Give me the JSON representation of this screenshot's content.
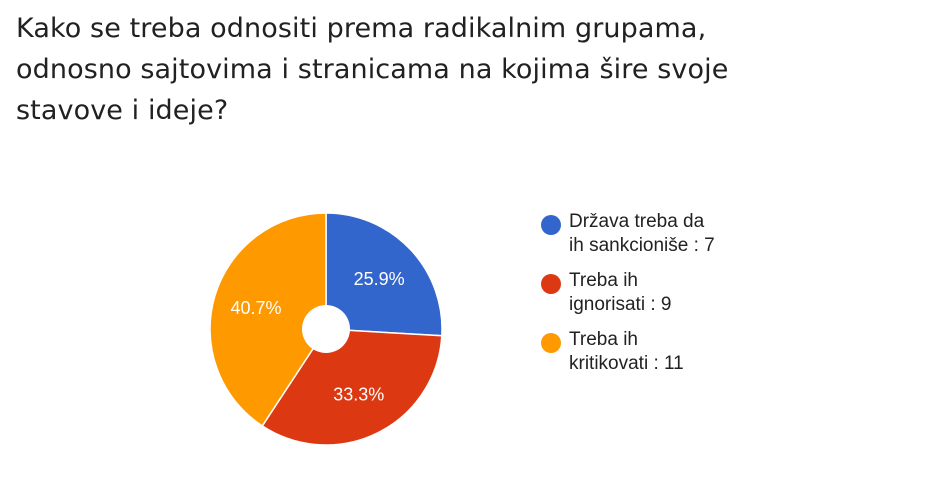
{
  "title_lines": [
    "Kako se treba odnositi prema radikalnim grupama,",
    "odnosno sajtovima i stranicama na kojima šire svoje",
    "stavove i ideje?"
  ],
  "chart_data": {
    "type": "pie",
    "donut": true,
    "legend_position": "right",
    "slices": [
      {
        "label_lines": [
          "Država treba da",
          "ih sankcioniše : 7"
        ],
        "value": 7,
        "percent_label": "25.9%",
        "color": "#3366cc"
      },
      {
        "label_lines": [
          "Treba ih",
          "ignorisati : 9"
        ],
        "value": 9,
        "percent_label": "33.3%",
        "color": "#dc3912"
      },
      {
        "label_lines": [
          "Treba ih",
          "kritikovati : 11"
        ],
        "value": 11,
        "percent_label": "40.7%",
        "color": "#ff9900"
      }
    ]
  }
}
